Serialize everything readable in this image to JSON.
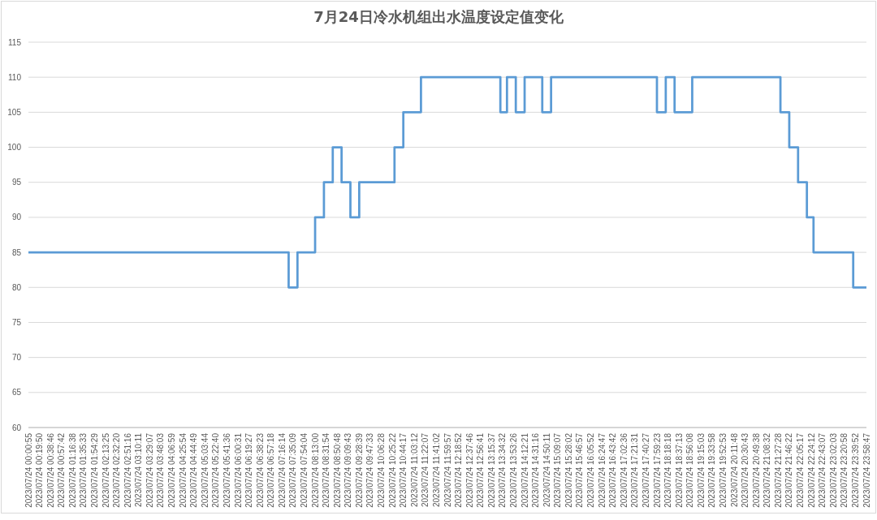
{
  "chart_data": {
    "type": "step",
    "title": "7月24日冷水机组出水温度设定值变化",
    "categories": [
      "2023/07/24 00:00:55",
      null,
      null,
      null,
      null,
      "2023/07/24 00:19:50",
      null,
      null,
      null,
      null,
      "2023/07/24 00:38:46",
      null,
      null,
      null,
      null,
      "2023/07/24 00:57:42",
      null,
      null,
      null,
      null,
      "2023/07/24 01:16:38",
      null,
      null,
      null,
      null,
      "2023/07/24 01:35:33",
      null,
      null,
      null,
      null,
      "2023/07/24 01:54:29",
      null,
      null,
      null,
      null,
      "2023/07/24 02:13:25",
      null,
      null,
      null,
      null,
      "2023/07/24 02:32:20",
      null,
      null,
      null,
      null,
      "2023/07/24 02:51:16",
      null,
      null,
      null,
      null,
      "2023/07/24 03:10:11",
      null,
      null,
      null,
      null,
      "2023/07/24 03:29:07",
      null,
      null,
      null,
      null,
      "2023/07/24 03:48:03",
      null,
      null,
      null,
      null,
      "2023/07/24 04:06:59",
      null,
      null,
      null,
      null,
      "2023/07/24 04:25:54",
      null,
      null,
      null,
      null,
      "2023/07/24 04:44:49",
      null,
      null,
      null,
      null,
      "2023/07/24 05:03:44",
      null,
      null,
      null,
      null,
      "2023/07/24 05:22:40",
      null,
      null,
      null,
      null,
      "2023/07/24 05:41:36",
      null,
      null,
      null,
      null,
      "2023/07/24 06:00:31",
      null,
      null,
      null,
      null,
      "2023/07/24 06:19:27",
      null,
      null,
      null,
      null,
      "2023/07/24 06:38:23",
      null,
      null,
      null,
      null,
      "2023/07/24 06:57:18",
      null,
      null,
      null,
      null,
      "2023/07/24 07:16:14",
      null,
      null,
      null,
      null,
      "2023/07/24 07:35:09",
      null,
      null,
      null,
      null,
      "2023/07/24 07:54:04",
      null,
      null,
      null,
      null,
      "2023/07/24 08:13:00",
      null,
      null,
      null,
      null,
      "2023/07/24 08:31:54",
      null,
      null,
      null,
      null,
      "2023/07/24 08:50:48",
      null,
      null,
      null,
      null,
      "2023/07/24 09:09:43",
      null,
      null,
      null,
      null,
      "2023/07/24 09:28:39",
      null,
      null,
      null,
      null,
      "2023/07/24 09:47:33",
      null,
      null,
      null,
      null,
      "2023/07/24 10:06:28",
      null,
      null,
      null,
      null,
      "2023/07/24 10:25:22",
      null,
      null,
      null,
      null,
      "2023/07/24 10:44:17",
      null,
      null,
      null,
      null,
      "2023/07/24 11:03:12",
      null,
      null,
      null,
      null,
      "2023/07/24 11:22:07",
      null,
      null,
      null,
      null,
      "2023/07/24 11:41:02",
      null,
      null,
      null,
      null,
      "2023/07/24 11:59:57",
      null,
      null,
      null,
      null,
      "2023/07/24 12:18:52",
      null,
      null,
      null,
      null,
      "2023/07/24 12:37:46",
      null,
      null,
      null,
      null,
      "2023/07/24 12:56:41",
      null,
      null,
      null,
      null,
      "2023/07/24 13:15:37",
      null,
      null,
      null,
      null,
      "2023/07/24 13:34:32",
      null,
      null,
      null,
      null,
      "2023/07/24 13:53:26",
      null,
      null,
      null,
      null,
      "2023/07/24 14:12:21",
      null,
      null,
      null,
      null,
      "2023/07/24 14:31:16",
      null,
      null,
      null,
      null,
      "2023/07/24 14:50:11",
      null,
      null,
      null,
      null,
      "2023/07/24 15:09:07",
      null,
      null,
      null,
      null,
      "2023/07/24 15:28:02",
      null,
      null,
      null,
      null,
      "2023/07/24 15:46:57",
      null,
      null,
      null,
      null,
      "2023/07/24 16:05:52",
      null,
      null,
      null,
      null,
      "2023/07/24 16:24:47",
      null,
      null,
      null,
      null,
      "2023/07/24 16:43:42",
      null,
      null,
      null,
      null,
      "2023/07/24 17:02:36",
      null,
      null,
      null,
      null,
      "2023/07/24 17:21:31",
      null,
      null,
      null,
      null,
      "2023/07/24 17:40:27",
      null,
      null,
      null,
      null,
      "2023/07/24 17:59:23",
      null,
      null,
      null,
      null,
      "2023/07/24 18:18:18",
      null,
      null,
      null,
      null,
      "2023/07/24 18:37:13",
      null,
      null,
      null,
      null,
      "2023/07/24 18:56:08",
      null,
      null,
      null,
      null,
      "2023/07/24 19:15:03",
      null,
      null,
      null,
      null,
      "2023/07/24 19:33:58",
      null,
      null,
      null,
      null,
      "2023/07/24 19:52:53",
      null,
      null,
      null,
      null,
      "2023/07/24 20:11:48",
      null,
      null,
      null,
      null,
      "2023/07/24 20:30:43",
      null,
      null,
      null,
      null,
      "2023/07/24 20:49:38",
      null,
      null,
      null,
      null,
      "2023/07/24 21:08:32",
      null,
      null,
      null,
      null,
      "2023/07/24 21:27:28",
      null,
      null,
      null,
      null,
      "2023/07/24 21:46:22",
      null,
      null,
      null,
      null,
      "2023/07/24 22:05:17",
      null,
      null,
      null,
      null,
      "2023/07/24 22:24:12",
      null,
      null,
      null,
      null,
      "2023/07/24 22:43:07",
      null,
      null,
      null,
      null,
      "2023/07/24 23:02:03",
      null,
      null,
      null,
      null,
      "2023/07/24 23:20:58",
      null,
      null,
      null,
      null,
      "2023/07/24 23:39:52",
      null,
      null,
      null,
      null,
      "2023/07/24 23:58:47"
    ],
    "values": [
      85,
      85,
      85,
      85,
      85,
      85,
      85,
      85,
      85,
      85,
      85,
      85,
      85,
      85,
      85,
      85,
      85,
      85,
      85,
      85,
      85,
      85,
      85,
      85,
      85,
      85,
      85,
      85,
      85,
      85,
      85,
      85,
      85,
      85,
      85,
      85,
      85,
      85,
      85,
      85,
      85,
      85,
      85,
      85,
      85,
      85,
      85,
      85,
      85,
      85,
      85,
      85,
      85,
      85,
      85,
      85,
      85,
      85,
      85,
      85,
      85,
      85,
      85,
      85,
      85,
      85,
      85,
      85,
      85,
      85,
      85,
      85,
      85,
      85,
      85,
      85,
      85,
      85,
      85,
      85,
      85,
      85,
      85,
      85,
      85,
      85,
      85,
      85,
      85,
      85,
      85,
      85,
      85,
      85,
      85,
      85,
      85,
      85,
      85,
      85,
      85,
      85,
      85,
      85,
      85,
      85,
      85,
      85,
      85,
      85,
      85,
      85,
      85,
      85,
      85,
      85,
      85,
      85,
      80,
      80,
      80,
      80,
      85,
      85,
      85,
      85,
      85,
      85,
      85,
      85,
      90,
      90,
      90,
      90,
      95,
      95,
      95,
      95,
      100,
      100,
      100,
      100,
      95,
      95,
      95,
      95,
      90,
      90,
      90,
      90,
      95,
      95,
      95,
      95,
      95,
      95,
      95,
      95,
      95,
      95,
      95,
      95,
      95,
      95,
      95,
      95,
      100,
      100,
      100,
      100,
      105,
      105,
      105,
      105,
      105,
      105,
      105,
      105,
      110,
      110,
      110,
      110,
      110,
      110,
      110,
      110,
      110,
      110,
      110,
      110,
      110,
      110,
      110,
      110,
      110,
      110,
      110,
      110,
      110,
      110,
      110,
      110,
      110,
      110,
      110,
      110,
      110,
      110,
      110,
      110,
      110,
      110,
      110,
      110,
      105,
      105,
      105,
      110,
      110,
      110,
      110,
      105,
      105,
      105,
      105,
      110,
      110,
      110,
      110,
      110,
      110,
      110,
      110,
      105,
      105,
      105,
      105,
      110,
      110,
      110,
      110,
      110,
      110,
      110,
      110,
      110,
      110,
      110,
      110,
      110,
      110,
      110,
      110,
      110,
      110,
      110,
      110,
      110,
      110,
      110,
      110,
      110,
      110,
      110,
      110,
      110,
      110,
      110,
      110,
      110,
      110,
      110,
      110,
      110,
      110,
      110,
      110,
      110,
      110,
      110,
      110,
      110,
      110,
      110,
      110,
      105,
      105,
      105,
      105,
      110,
      110,
      110,
      110,
      105,
      105,
      105,
      105,
      105,
      105,
      105,
      105,
      110,
      110,
      110,
      110,
      110,
      110,
      110,
      110,
      110,
      110,
      110,
      110,
      110,
      110,
      110,
      110,
      110,
      110,
      110,
      110,
      110,
      110,
      110,
      110,
      110,
      110,
      110,
      110,
      110,
      110,
      110,
      110,
      110,
      110,
      110,
      110,
      110,
      110,
      110,
      110,
      105,
      105,
      105,
      105,
      100,
      100,
      100,
      100,
      95,
      95,
      95,
      95,
      90,
      90,
      90,
      85,
      85,
      85,
      85,
      85,
      85,
      85,
      85,
      85,
      85,
      85,
      85,
      85,
      85,
      85,
      85,
      85,
      85,
      80,
      80,
      80,
      80,
      80,
      80,
      80
    ],
    "color": "#5b9bd5",
    "line_style": "solid",
    "ylim": [
      60,
      115
    ],
    "yticks": [
      60,
      65,
      70,
      75,
      80,
      85,
      90,
      95,
      100,
      105,
      110,
      115
    ],
    "grid": "y"
  }
}
